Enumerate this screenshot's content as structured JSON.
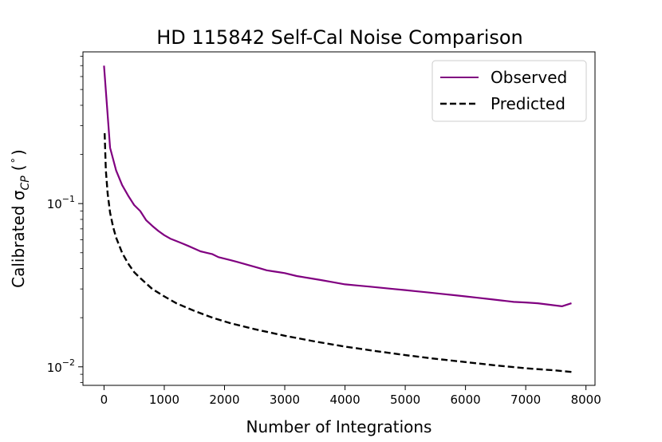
{
  "chart_data": {
    "type": "line",
    "title": "HD 115842 Self-Cal Noise Comparison",
    "xlabel": "Number of Integrations",
    "ylabel_main": "Calibrated σ",
    "ylabel_sub": "CP",
    "ylabel_unit_open": "(",
    "ylabel_unit": "°",
    "ylabel_unit_close": ")",
    "xlim": [
      -350,
      8150
    ],
    "ylim": [
      0.0077,
      0.85
    ],
    "yscale": "log",
    "xticks": [
      0,
      1000,
      2000,
      3000,
      4000,
      5000,
      6000,
      7000,
      8000
    ],
    "yticks_major": [
      {
        "value": 0.1,
        "base": "10",
        "exp": "−1"
      },
      {
        "value": 0.01,
        "base": "10",
        "exp": "−2"
      }
    ],
    "legend_position": "top-right",
    "series": [
      {
        "name": "Observed",
        "color": "#800080",
        "style": "solid",
        "x": [
          0,
          100,
          200,
          300,
          400,
          500,
          600,
          700,
          800,
          900,
          1000,
          1100,
          1200,
          1300,
          1400,
          1500,
          1600,
          1700,
          1800,
          1900,
          2000,
          2100,
          2200,
          2300,
          2400,
          2500,
          2600,
          2700,
          2800,
          2900,
          3000,
          3200,
          3400,
          3600,
          3800,
          4000,
          4200,
          4400,
          4600,
          4800,
          5000,
          5200,
          5400,
          5600,
          5800,
          6000,
          6200,
          6400,
          6600,
          6800,
          7000,
          7200,
          7400,
          7600,
          7760
        ],
        "y": [
          0.7,
          0.22,
          0.16,
          0.13,
          0.112,
          0.098,
          0.09,
          0.079,
          0.073,
          0.068,
          0.064,
          0.061,
          0.059,
          0.057,
          0.055,
          0.053,
          0.051,
          0.05,
          0.049,
          0.047,
          0.046,
          0.045,
          0.044,
          0.043,
          0.042,
          0.041,
          0.04,
          0.039,
          0.0385,
          0.038,
          0.0375,
          0.036,
          0.035,
          0.034,
          0.033,
          0.032,
          0.0315,
          0.031,
          0.0305,
          0.03,
          0.0295,
          0.029,
          0.0285,
          0.028,
          0.0275,
          0.027,
          0.0265,
          0.026,
          0.0255,
          0.025,
          0.0248,
          0.0245,
          0.024,
          0.0235,
          0.0245
        ]
      },
      {
        "name": "Predicted",
        "color": "#000000",
        "style": "dashed",
        "x": [
          10,
          30,
          60,
          100,
          150,
          200,
          300,
          400,
          500,
          600,
          800,
          1000,
          1200,
          1500,
          1800,
          2100,
          2500,
          3000,
          3500,
          4000,
          4500,
          5000,
          5500,
          6000,
          6500,
          7000,
          7500,
          7760
        ],
        "y": [
          0.27,
          0.16,
          0.115,
          0.088,
          0.072,
          0.062,
          0.05,
          0.043,
          0.038,
          0.035,
          0.03,
          0.027,
          0.0245,
          0.022,
          0.02,
          0.0185,
          0.017,
          0.0155,
          0.0143,
          0.0133,
          0.0125,
          0.0118,
          0.0112,
          0.0107,
          0.0102,
          0.0098,
          0.0095,
          0.0093
        ]
      }
    ]
  }
}
